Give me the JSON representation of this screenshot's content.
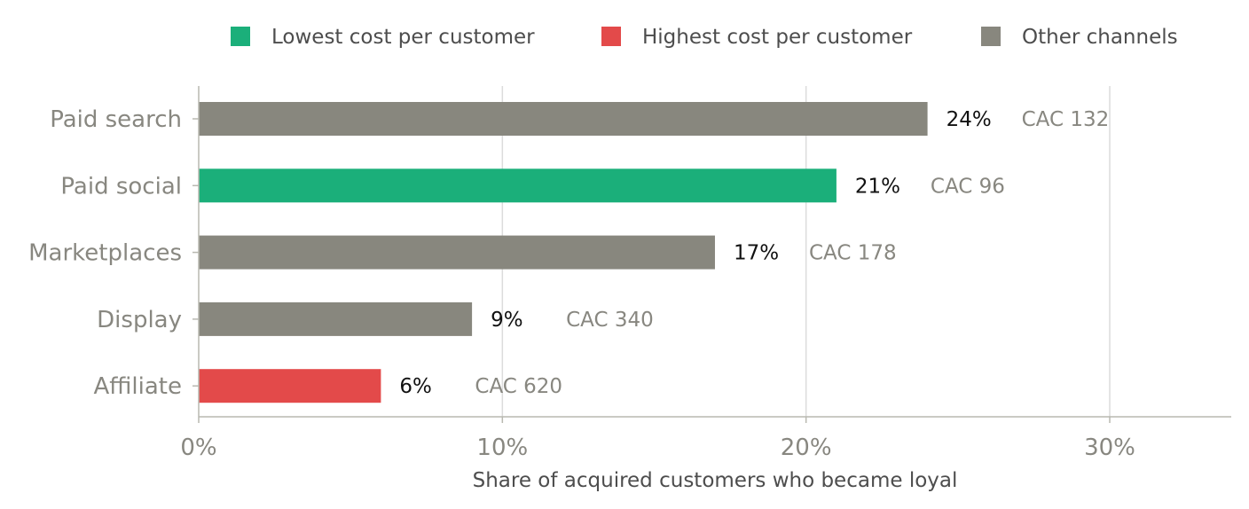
{
  "chart_data": {
    "type": "bar",
    "orientation": "horizontal",
    "categories": [
      "Paid search",
      "Paid social",
      "Marketplaces",
      "Display",
      "Affiliate"
    ],
    "values": [
      24,
      21,
      17,
      9,
      6
    ],
    "value_labels": [
      "24%",
      "21%",
      "17%",
      "9%",
      "6%"
    ],
    "cac_labels": [
      "CAC 132",
      "CAC 96",
      "CAC 178",
      "CAC 340",
      "CAC 620"
    ],
    "cac_values": [
      132,
      96,
      178,
      340,
      620
    ],
    "bar_groups": [
      "other",
      "lowest",
      "other",
      "other",
      "highest"
    ],
    "xlabel": "Share of acquired customers who became loyal",
    "ylabel": "",
    "xlim": [
      0,
      34
    ],
    "xticks": [
      0,
      10,
      20,
      30
    ],
    "xtick_labels": [
      "0%",
      "10%",
      "20%",
      "30%"
    ],
    "grid": "vertical",
    "legend_position": "top",
    "legend": [
      {
        "key": "lowest",
        "label": "Lowest cost per customer",
        "color": "#1baf7a"
      },
      {
        "key": "highest",
        "label": "Highest cost per customer",
        "color": "#e34a4a"
      },
      {
        "key": "other",
        "label": "Other channels",
        "color": "#88877e"
      }
    ]
  }
}
